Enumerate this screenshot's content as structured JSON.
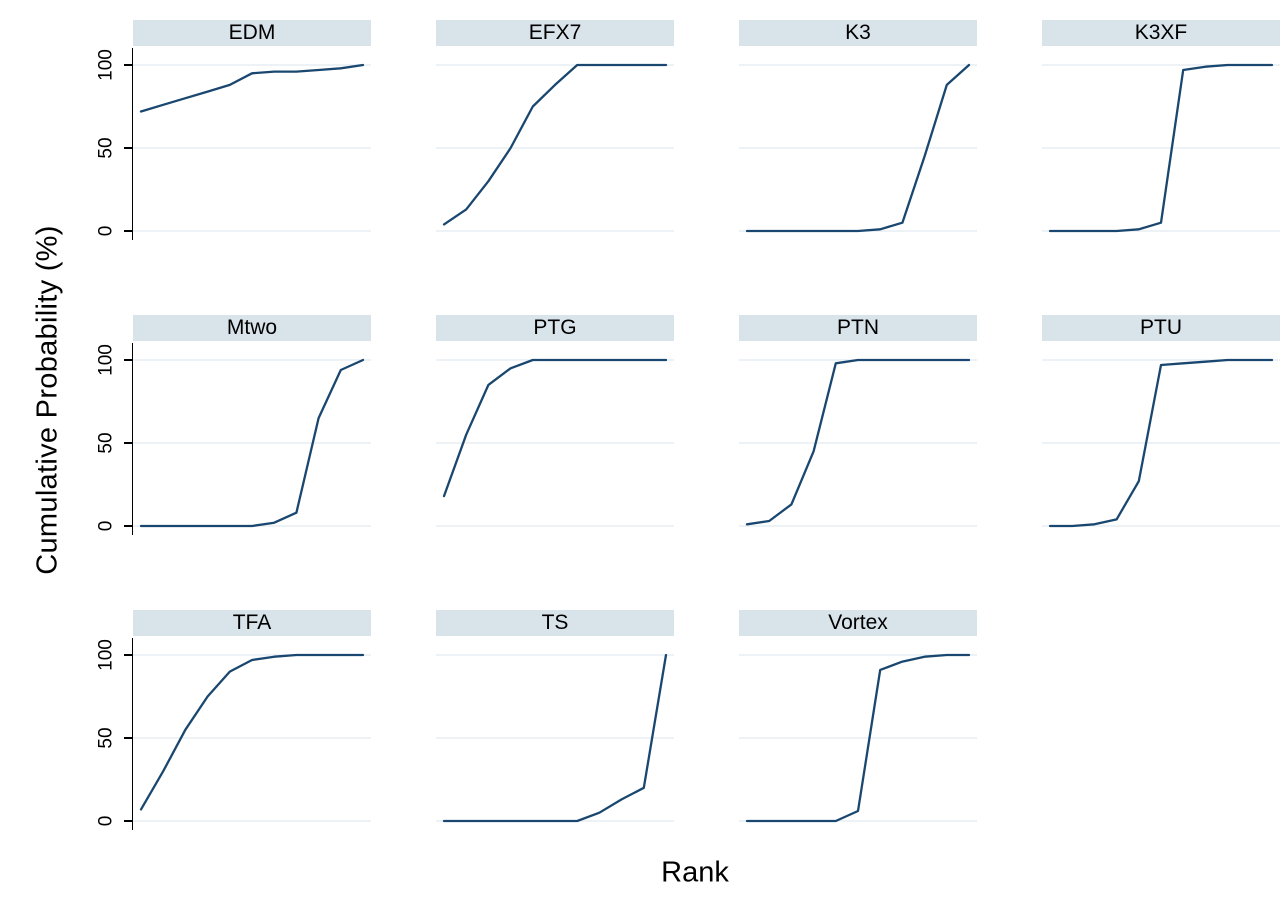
{
  "figure": {
    "ylabel": "Cumulative Probability (%)",
    "xlabel": "Rank",
    "ytick_labels": [
      "100",
      "50",
      "0"
    ],
    "colors": {
      "line": "#1a476f",
      "panel_header_bg": "#d9e3ea",
      "gridline": "#e7eef4",
      "axis": "#000000",
      "background": "#ffffff",
      "text": "#000000"
    }
  },
  "chart_data": {
    "type": "line",
    "layout": "small-multiples 3 rows x 4 columns, last cell empty",
    "xlabel": "Rank",
    "ylabel": "Cumulative Probability (%)",
    "x": [
      1,
      2,
      3,
      4,
      5,
      6,
      7,
      8,
      9,
      10,
      11
    ],
    "x_tick_labels_shown": false,
    "ylim": [
      0,
      100
    ],
    "yticks": [
      0,
      50,
      100
    ],
    "grid": "horizontal gridlines at 0, 50, 100",
    "legend": "none; one panel per series with title bar",
    "series": [
      {
        "name": "EDM",
        "values": [
          72,
          76,
          80,
          84,
          88,
          95,
          96,
          96,
          97,
          98,
          100
        ]
      },
      {
        "name": "EFX7",
        "values": [
          4,
          13,
          30,
          50,
          75,
          88,
          100,
          100,
          100,
          100,
          100
        ]
      },
      {
        "name": "K3",
        "values": [
          0,
          0,
          0,
          0,
          0,
          0,
          1,
          5,
          45,
          88,
          100
        ]
      },
      {
        "name": "K3XF",
        "values": [
          0,
          0,
          0,
          0,
          1,
          5,
          97,
          99,
          100,
          100,
          100
        ]
      },
      {
        "name": "Mtwo",
        "values": [
          0,
          0,
          0,
          0,
          0,
          0,
          2,
          8,
          65,
          94,
          100
        ]
      },
      {
        "name": "PTG",
        "values": [
          18,
          55,
          85,
          95,
          100,
          100,
          100,
          100,
          100,
          100,
          100
        ]
      },
      {
        "name": "PTN",
        "values": [
          1,
          3,
          13,
          45,
          98,
          100,
          100,
          100,
          100,
          100,
          100
        ]
      },
      {
        "name": "PTU",
        "values": [
          0,
          0,
          1,
          4,
          27,
          97,
          98,
          99,
          100,
          100,
          100
        ]
      },
      {
        "name": "TFA",
        "values": [
          7,
          30,
          55,
          75,
          90,
          97,
          99,
          100,
          100,
          100,
          100
        ]
      },
      {
        "name": "TS",
        "values": [
          0,
          0,
          0,
          0,
          0,
          0,
          0,
          5,
          13,
          20,
          100
        ]
      },
      {
        "name": "Vortex",
        "values": [
          0,
          0,
          0,
          0,
          0,
          6,
          91,
          96,
          99,
          100,
          100
        ]
      }
    ]
  }
}
